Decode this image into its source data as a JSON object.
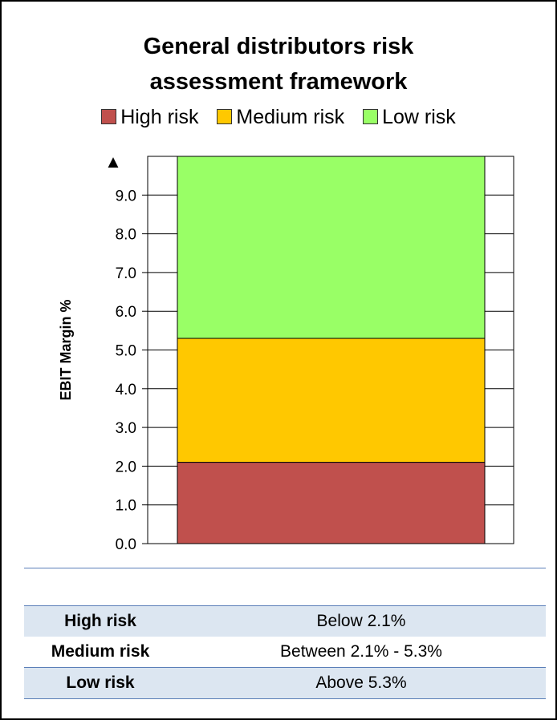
{
  "chart_data": {
    "type": "bar",
    "stacked": true,
    "title": "General distributors risk assessment framework",
    "title_lines": [
      "General distributors risk",
      "assessment framework"
    ],
    "ylabel": "EBIT Margin %",
    "ylim": [
      0,
      10
    ],
    "yticks": [
      "0.0",
      "1.0",
      "2.0",
      "3.0",
      "4.0",
      "5.0",
      "6.0",
      "7.0",
      "8.0",
      "9.0"
    ],
    "top_marker": "▲",
    "legend_position": "top",
    "series": [
      {
        "name": "High risk",
        "range": [
          0,
          2.1
        ],
        "color": "#c0504d"
      },
      {
        "name": "Medium risk",
        "range": [
          2.1,
          5.3
        ],
        "color": "#ffc800"
      },
      {
        "name": "Low risk",
        "range": [
          5.3,
          10
        ],
        "color": "#99ff66"
      }
    ]
  },
  "table": {
    "rows": [
      {
        "label": "High risk",
        "range": "Below 2.1%"
      },
      {
        "label": "Medium risk",
        "range": "Between 2.1% - 5.3%"
      },
      {
        "label": "Low risk",
        "range": "Above 5.3%"
      }
    ]
  }
}
